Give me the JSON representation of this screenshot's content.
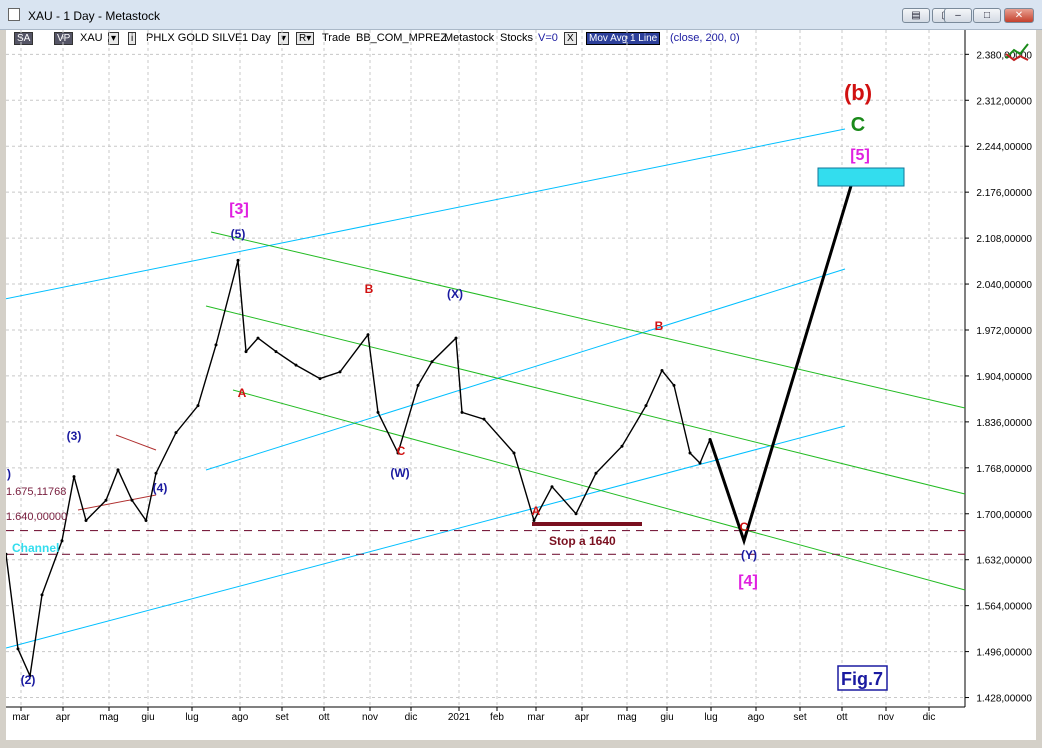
{
  "window": {
    "title": "XAU - 1 Day - Metastock",
    "buttons": [
      "▤",
      "▢",
      "–",
      "□",
      "✕"
    ]
  },
  "toolbar": {
    "sa": "SA",
    "vp": "VP",
    "symbol": "XAU",
    "name": "PHLX GOLD SILVE",
    "period": "1 Day",
    "r": "R",
    "trade": "Trade",
    "broker": "BB_COM_MPREZ",
    "source": "Metastock",
    "type": "Stocks",
    "v": "V=0",
    "close_x": "X",
    "indicator": "Mov Avg 1 Line",
    "params": "(close,   200,   0)"
  },
  "chart_data": {
    "type": "line",
    "title": "",
    "x_ticks": [
      "mar",
      "apr",
      "mag",
      "giu",
      "lug",
      "ago",
      "set",
      "ott",
      "nov",
      "dic",
      "2021",
      "feb",
      "mar",
      "apr",
      "mag",
      "giu",
      "lug",
      "ago",
      "set",
      "ott",
      "nov",
      "dic"
    ],
    "y_ticks": [
      "2.380,00000",
      "2.312,00000",
      "2.244,00000",
      "2.176,00000",
      "2.108,00000",
      "2.040,00000",
      "1.972,00000",
      "1.904,00000",
      "1.836,00000",
      "1.768,00000",
      "1.700,00000",
      "1.632,00000",
      "1.564,00000",
      "1.496,00000",
      "1.428,00000"
    ],
    "ylim": [
      1414,
      2416
    ],
    "series": [
      {
        "values": [
          [
            "mar",
            1640
          ],
          [
            "mar",
            1500
          ],
          [
            "mar",
            1460
          ],
          [
            "mar",
            1580
          ],
          [
            "apr",
            1660
          ],
          [
            "apr",
            1755
          ],
          [
            "apr",
            1690
          ],
          [
            "mag",
            1720
          ],
          [
            "mag",
            1765
          ],
          [
            "mag",
            1720
          ],
          [
            "giu",
            1690
          ],
          [
            "giu",
            1760
          ],
          [
            "lug",
            1820
          ],
          [
            "lug",
            1860
          ],
          [
            "lug",
            1950
          ],
          [
            "ago",
            2075
          ],
          [
            "ago",
            1940
          ],
          [
            "ago",
            1960
          ],
          [
            "set",
            1940
          ],
          [
            "set",
            1920
          ],
          [
            "ott",
            1900
          ],
          [
            "ott",
            1910
          ],
          [
            "nov",
            1965
          ],
          [
            "nov",
            1850
          ],
          [
            "nov",
            1790
          ],
          [
            "dic",
            1890
          ],
          [
            "dic",
            1925
          ],
          [
            "2021",
            1960
          ],
          [
            "2021",
            1850
          ],
          [
            "feb",
            1840
          ],
          [
            "feb",
            1790
          ],
          [
            "mar",
            1690
          ],
          [
            "mar",
            1740
          ],
          [
            "apr",
            1700
          ],
          [
            "apr",
            1760
          ],
          [
            "mag",
            1800
          ],
          [
            "mag",
            1860
          ],
          [
            "giu",
            1912
          ],
          [
            "giu",
            1890
          ],
          [
            "lug",
            1790
          ],
          [
            "lug",
            1775
          ],
          [
            "lug",
            1810
          ]
        ]
      }
    ],
    "projection": [
      [
        "lug",
        1810
      ],
      [
        "ago",
        1660
      ],
      [
        "ott",
        2200
      ]
    ],
    "stop_label": "Stop a 1640",
    "price_lines": [
      "1.675,11768",
      "1.640,00000"
    ],
    "channel_label": "Channel",
    "figure_label": "Fig.7",
    "wave_labels": {
      "b_big": "(b)",
      "c_green": "C",
      "w5": "[5]",
      "w3": "[3]",
      "p5": "(5)",
      "x": "(X)",
      "w": "(W)",
      "y": "(Y)",
      "w4": "[4]",
      "p3": "(3)",
      "p2": "(2)",
      "p4": "(4)",
      "p1": ")",
      "a1": "A",
      "b1": "B",
      "c1": "C",
      "a2": "A",
      "b2": "B",
      "c2": "C"
    },
    "colors": {
      "price": "#000000",
      "channel_cyan": "#00bfff",
      "channel_green": "#22bb22",
      "red_label": "#d01010",
      "blue_label": "#1a1aa0",
      "magenta_label": "#e020e0",
      "dashed_line": "#7a2040",
      "target_box": "#33ddee",
      "fig_border": "#1a1aa0"
    }
  }
}
